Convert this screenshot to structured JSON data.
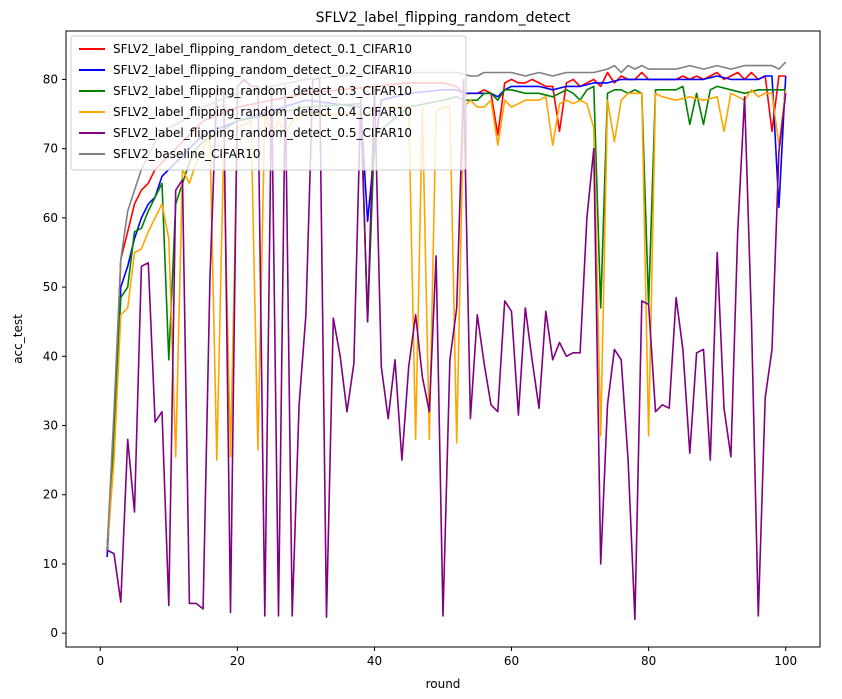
{
  "chart_data": {
    "type": "line",
    "title": "SFLV2_label_flipping_random_detect",
    "xlabel": "round",
    "ylabel": "acc_test",
    "xlim": [
      -5,
      105
    ],
    "ylim": [
      -2,
      87
    ],
    "xticks": [
      0,
      20,
      40,
      60,
      80,
      100
    ],
    "yticks": [
      0,
      10,
      20,
      30,
      40,
      50,
      60,
      70,
      80
    ],
    "grid": false,
    "legend_position": "top-left",
    "series": [
      {
        "name": "SFLV2_label_flipping_random_detect_0.1_CIFAR10",
        "color": "#ff0000",
        "x": [
          1,
          2,
          3,
          4,
          5,
          6,
          7,
          8,
          9,
          10,
          11,
          12,
          13,
          14,
          15,
          20,
          30,
          40,
          45,
          50,
          52,
          53,
          54,
          55,
          56,
          57,
          58,
          59,
          60,
          61,
          62,
          63,
          64,
          65,
          66,
          67,
          68,
          69,
          70,
          71,
          72,
          73,
          74,
          75,
          76,
          77,
          78,
          79,
          80,
          81,
          82,
          83,
          84,
          85,
          86,
          87,
          88,
          89,
          90,
          91,
          92,
          93,
          94,
          95,
          96,
          97,
          98,
          99,
          100
        ],
        "y": [
          12,
          30,
          54,
          58,
          62,
          64,
          65,
          67,
          68,
          69,
          70,
          71,
          72,
          73,
          74,
          76,
          78,
          79,
          79.5,
          79.5,
          79,
          78,
          78,
          78,
          78.5,
          78,
          72,
          79.5,
          80,
          79.5,
          79.5,
          80,
          79.5,
          79,
          79,
          72.5,
          79.5,
          80,
          79,
          79.5,
          80,
          79,
          81,
          79.5,
          80.5,
          80,
          80,
          81,
          80,
          80,
          80,
          80,
          80,
          80.5,
          80,
          80.5,
          80,
          80.5,
          81,
          80,
          80.5,
          81,
          80,
          81,
          80,
          80.5,
          72.5,
          80.5,
          80.5
        ]
      },
      {
        "name": "SFLV2_label_flipping_random_detect_0.2_CIFAR10",
        "color": "#0000ff",
        "x": [
          1,
          2,
          3,
          4,
          5,
          6,
          7,
          8,
          9,
          10,
          11,
          12,
          13,
          14,
          15,
          20,
          30,
          38,
          39,
          40,
          41,
          45,
          50,
          52,
          53,
          54,
          55,
          56,
          57,
          58,
          59,
          60,
          62,
          64,
          66,
          68,
          70,
          72,
          74,
          76,
          78,
          80,
          82,
          84,
          86,
          88,
          90,
          92,
          94,
          96,
          97,
          98,
          99,
          100
        ],
        "y": [
          11,
          28,
          50,
          53,
          57,
          60,
          62,
          63,
          66,
          67,
          68,
          69,
          70,
          71,
          72,
          74,
          77,
          76,
          59.5,
          70,
          77,
          78,
          78.5,
          78.5,
          78,
          78,
          78,
          78,
          78,
          77.5,
          78.5,
          79,
          79,
          79,
          78.5,
          79,
          79,
          79.5,
          79.5,
          80,
          80,
          80,
          80,
          80,
          80,
          80,
          80.5,
          80,
          80,
          80,
          80.5,
          80.5,
          61.5,
          80.5
        ]
      },
      {
        "name": "SFLV2_label_flipping_random_detect_0.3_CIFAR10",
        "color": "#008000",
        "x": [
          1,
          2,
          3,
          4,
          5,
          6,
          7,
          8,
          9,
          10,
          11,
          12,
          13,
          14,
          15,
          20,
          30,
          38,
          39,
          40,
          45,
          50,
          52,
          53,
          54,
          55,
          56,
          57,
          58,
          59,
          60,
          62,
          64,
          66,
          68,
          69,
          70,
          71,
          72,
          73,
          74,
          75,
          76,
          77,
          78,
          79,
          80,
          81,
          82,
          84,
          85,
          86,
          87,
          88,
          89,
          90,
          92,
          94,
          96,
          98,
          99,
          100
        ],
        "y": [
          12,
          28,
          48.5,
          50,
          58,
          58.5,
          61,
          63,
          65,
          39.5,
          62,
          65,
          68,
          70,
          71,
          74,
          76,
          76.5,
          45,
          72,
          76,
          77,
          77.5,
          77,
          77,
          77,
          78,
          78,
          77,
          78.5,
          78.5,
          78,
          78,
          77.5,
          78.5,
          78,
          77,
          78.5,
          79,
          47,
          78,
          78.5,
          78.5,
          78,
          78.5,
          78,
          47.5,
          78.5,
          78.5,
          78.5,
          79,
          73.5,
          78,
          73.5,
          78.5,
          79,
          78.5,
          78,
          78.5,
          78.5,
          78.5,
          78.5
        ]
      },
      {
        "name": "SFLV2_label_flipping_random_detect_0.4_CIFAR10",
        "color": "#ffa500",
        "x": [
          1,
          2,
          3,
          4,
          5,
          6,
          7,
          8,
          9,
          10,
          11,
          12,
          13,
          14,
          15,
          16,
          17,
          18,
          19,
          20,
          22,
          23,
          24,
          25,
          26,
          27,
          28,
          30,
          32,
          34,
          36,
          38,
          39,
          40,
          42,
          44,
          45,
          46,
          47,
          48,
          49,
          50,
          51,
          52,
          53,
          54,
          55,
          56,
          57,
          58,
          59,
          60,
          62,
          64,
          65,
          66,
          67,
          68,
          69,
          70,
          71,
          72,
          73,
          74,
          75,
          76,
          77,
          78,
          79,
          80,
          81,
          82,
          84,
          86,
          88,
          90,
          91,
          92,
          94,
          95,
          96,
          97,
          98,
          99,
          100
        ],
        "y": [
          12,
          25,
          46,
          47,
          55,
          55.5,
          58,
          60,
          62,
          57,
          25.5,
          67,
          65,
          68,
          70,
          72,
          25,
          70,
          25.5,
          73,
          74,
          26.5,
          75,
          72,
          74,
          72,
          74,
          75,
          75,
          75,
          75,
          75,
          75,
          76,
          76,
          76,
          76,
          28,
          76,
          28,
          75.5,
          76,
          76,
          27.5,
          76,
          77,
          76,
          76,
          77,
          70.5,
          77,
          76,
          77,
          77,
          77.5,
          70.5,
          76.5,
          77,
          76.5,
          77,
          76.5,
          73,
          28.5,
          77,
          71,
          77,
          78,
          78,
          78,
          28.5,
          78,
          77.5,
          77,
          77.5,
          77,
          77.5,
          72.5,
          78,
          77,
          78.5,
          77.5,
          78,
          78,
          70.5,
          78.5
        ]
      },
      {
        "name": "SFLV2_label_flipping_random_detect_0.5_CIFAR10",
        "color": "#800080",
        "x": [
          1,
          2,
          3,
          4,
          5,
          6,
          7,
          8,
          9,
          10,
          11,
          12,
          13,
          14,
          15,
          16,
          17,
          18,
          19,
          20,
          21,
          22,
          23,
          24,
          25,
          26,
          27,
          28,
          29,
          30,
          31,
          32,
          33,
          34,
          35,
          36,
          37,
          38,
          39,
          40,
          41,
          42,
          43,
          44,
          45,
          46,
          47,
          48,
          49,
          50,
          51,
          52,
          53,
          54,
          55,
          56,
          57,
          58,
          59,
          60,
          61,
          62,
          63,
          64,
          65,
          66,
          67,
          68,
          69,
          70,
          71,
          72,
          73,
          74,
          75,
          76,
          77,
          78,
          79,
          80,
          81,
          82,
          83,
          84,
          85,
          86,
          87,
          88,
          89,
          90,
          91,
          92,
          93,
          94,
          95,
          96,
          97,
          98,
          99,
          100
        ],
        "y": [
          12,
          11.5,
          4.5,
          28,
          17.5,
          53,
          53.5,
          30.5,
          32,
          4,
          64,
          65.5,
          4.3,
          4.3,
          3.5,
          51,
          79,
          78,
          3,
          79,
          80,
          79,
          79,
          2.5,
          79,
          2.5,
          79,
          2.5,
          33,
          46,
          80,
          80,
          2.3,
          45.5,
          40,
          32,
          39,
          77,
          45,
          79,
          38.5,
          31,
          39.5,
          25,
          38.5,
          46,
          37,
          32,
          54.5,
          2.5,
          39.5,
          47,
          80,
          31,
          46,
          39,
          33,
          32,
          48,
          46.5,
          31.5,
          47,
          39.5,
          32.5,
          46.5,
          39.5,
          42,
          40,
          40.5,
          40.5,
          60,
          70,
          10,
          33,
          41,
          39.5,
          25,
          2,
          48,
          47.5,
          32,
          33,
          32.5,
          48.5,
          41,
          26,
          40.5,
          41,
          25,
          55,
          32.5,
          25.5,
          58,
          77.5,
          45,
          2.5,
          34,
          41,
          69.5,
          78
        ]
      },
      {
        "name": "SFLV2_baseline_CIFAR10",
        "color": "#808080",
        "x": [
          1,
          2,
          3,
          4,
          5,
          6,
          7,
          8,
          9,
          10,
          12,
          15,
          20,
          25,
          30,
          35,
          40,
          45,
          50,
          52,
          54,
          55,
          56,
          58,
          60,
          62,
          64,
          66,
          68,
          70,
          72,
          74,
          75,
          76,
          77,
          78,
          79,
          80,
          82,
          84,
          86,
          88,
          90,
          92,
          94,
          96,
          98,
          99,
          100
        ],
        "y": [
          12,
          32,
          54,
          61,
          64,
          67,
          69,
          71,
          72,
          73,
          74,
          76,
          78,
          79,
          80,
          80.5,
          81,
          81,
          81,
          81,
          80.5,
          80.5,
          81,
          81,
          81,
          80.5,
          81,
          80.5,
          81,
          81,
          81,
          81.5,
          82,
          81,
          82,
          81.5,
          82,
          81.5,
          81.5,
          81.5,
          82,
          81.5,
          82,
          81.5,
          82,
          82,
          82,
          81.5,
          82.5
        ]
      }
    ]
  }
}
